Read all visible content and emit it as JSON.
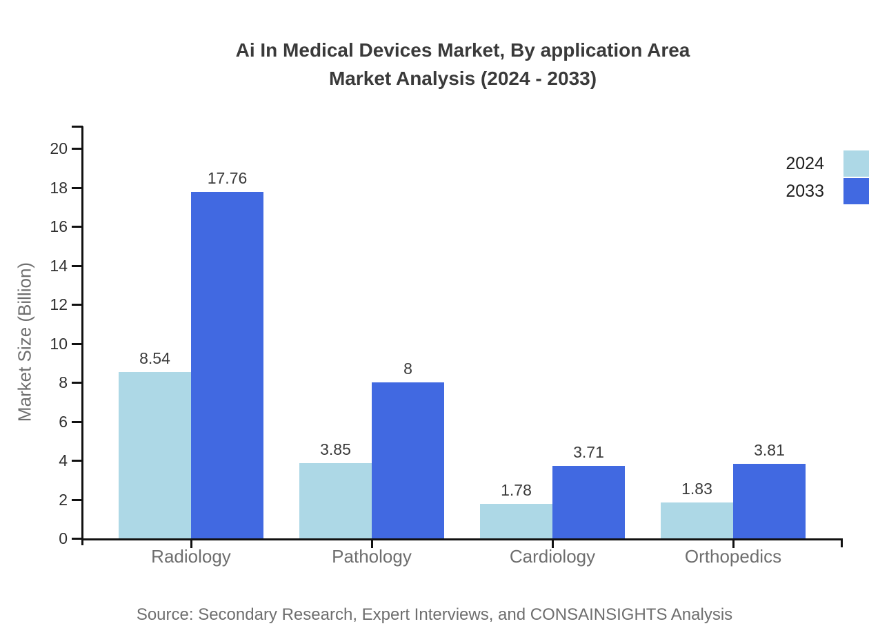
{
  "title": {
    "line1": "Ai In Medical Devices Market, By application Area",
    "line2": "Market Analysis (2024 - 2033)"
  },
  "source": "Source: Secondary Research, Expert Interviews, and CONSAINSIGHTS Analysis",
  "chart_data": {
    "type": "bar",
    "title": "Ai In Medical Devices Market, By application Area Market Analysis (2024 - 2033)",
    "categories": [
      "Radiology",
      "Pathology",
      "Cardiology",
      "Orthopedics"
    ],
    "series": [
      {
        "name": "2024",
        "color": "#ADD8E6",
        "values": [
          8.54,
          3.85,
          1.78,
          1.83
        ]
      },
      {
        "name": "2033",
        "color": "#4169E1",
        "values": [
          17.76,
          8,
          3.71,
          3.81
        ]
      }
    ],
    "value_labels": [
      [
        "8.54",
        "3.85",
        "1.78",
        "1.83"
      ],
      [
        "17.76",
        "8",
        "3.71",
        "3.81"
      ]
    ],
    "xlabel": "",
    "ylabel": "Market Size (Billion)",
    "ylim": [
      0,
      20
    ],
    "ytick_step": 2,
    "yticks": [
      0,
      2,
      4,
      6,
      8,
      10,
      12,
      14,
      16,
      18,
      20
    ],
    "grid": false,
    "legend_position": "top-right"
  },
  "colors": {
    "series_2024": "#ADD8E6",
    "series_2033": "#4169E1",
    "axis": "#111111",
    "title_text": "#3a3a3a",
    "muted_text": "#6e6e6e",
    "tick_text": "#2e2e2e"
  }
}
